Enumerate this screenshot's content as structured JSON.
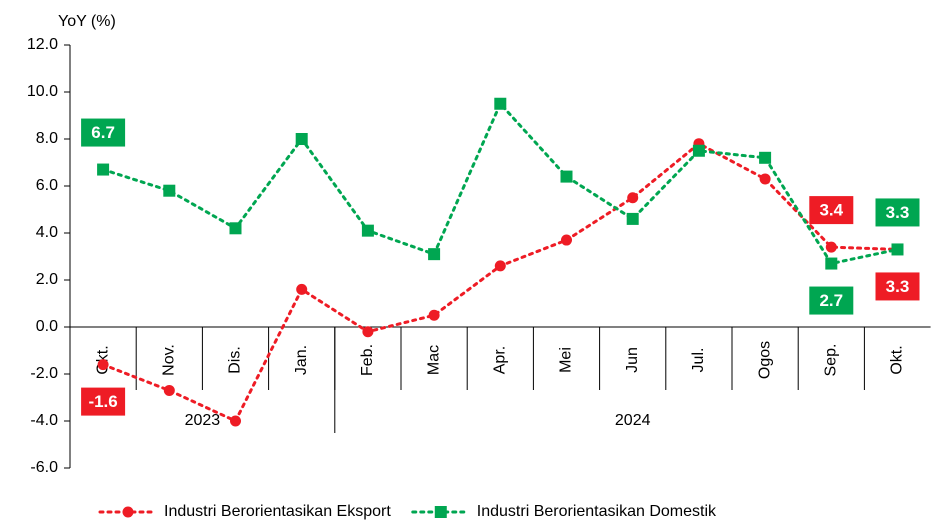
{
  "chart_data": {
    "type": "line",
    "y_label": "YoY (%)",
    "categories": [
      "Okt.",
      "Nov.",
      "Dis.",
      "Jan.",
      "Feb.",
      "Mac",
      "Apr.",
      "Mei",
      "Jun",
      "Jul.",
      "Ogos",
      "Sep.",
      "Okt."
    ],
    "category_groups": [
      {
        "label": "2023",
        "span": 4
      },
      {
        "label": "2024",
        "span": 9
      }
    ],
    "series": [
      {
        "name": "Industri Berorientasikan Eksport",
        "color": "#ee1c25",
        "marker": "circle",
        "values": [
          -1.6,
          -2.7,
          -4.0,
          1.6,
          -0.2,
          0.5,
          2.6,
          3.7,
          5.5,
          7.8,
          6.3,
          3.4,
          3.3
        ],
        "data_labels": [
          0,
          11,
          12
        ]
      },
      {
        "name": "Industri Berorientasikan Domestik",
        "color": "#00a651",
        "marker": "square",
        "values": [
          6.7,
          5.8,
          4.2,
          8.0,
          4.1,
          3.1,
          9.5,
          6.4,
          4.6,
          7.5,
          7.2,
          2.7,
          3.3
        ],
        "data_labels": [
          0,
          11,
          12
        ]
      }
    ],
    "ylim": [
      -6,
      12
    ],
    "yticks": [
      {
        "value": -6,
        "label": "-6.0"
      },
      {
        "value": -4,
        "label": "-4.0"
      },
      {
        "value": -2,
        "label": "-2.0"
      },
      {
        "value": 0,
        "label": "0.0"
      },
      {
        "value": 2,
        "label": "2.0"
      },
      {
        "value": 4,
        "label": "4.0"
      },
      {
        "value": 6,
        "label": "6.0"
      },
      {
        "value": 8,
        "label": "8.0"
      },
      {
        "value": 10,
        "label": "10.0"
      },
      {
        "value": 12,
        "label": "12.0"
      }
    ],
    "legend": "bottom"
  }
}
